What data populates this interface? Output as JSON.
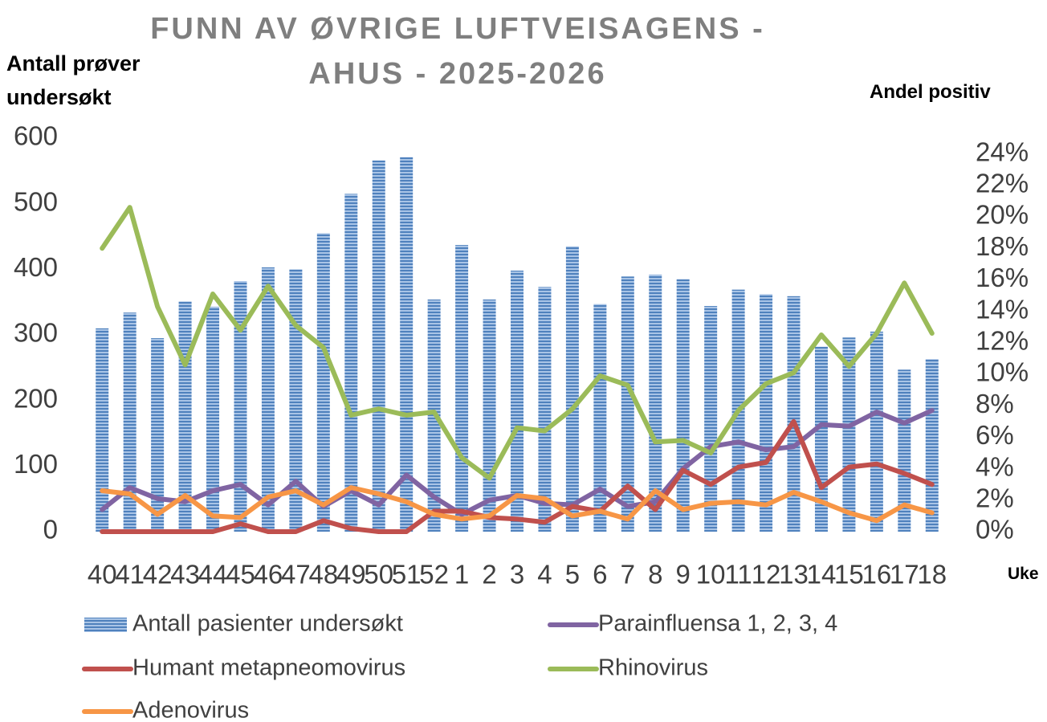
{
  "chart_data": {
    "type": "combo",
    "title": "FUNN AV ØVRIGE LUFTVEISAGENS - AHUS - 2025-2026",
    "y_label": "Antall prøver undersøkt",
    "y2_label": "Andel positiv",
    "x_label": "Uke",
    "categories": [
      "40",
      "41",
      "42",
      "43",
      "44",
      "45",
      "46",
      "47",
      "48",
      "49",
      "50",
      "51",
      "52",
      "1",
      "2",
      "3",
      "4",
      "5",
      "6",
      "7",
      "8",
      "9",
      "10",
      "11",
      "12",
      "13",
      "14",
      "15",
      "16",
      "17",
      "18"
    ],
    "ylim": [
      0,
      600
    ],
    "yticks": [
      0,
      100,
      200,
      300,
      400,
      500,
      600
    ],
    "y2lim": [
      0,
      25
    ],
    "y2ticks": [
      {
        "value": 0,
        "label": "0%"
      },
      {
        "value": 2,
        "label": "2%"
      },
      {
        "value": 4,
        "label": "4%"
      },
      {
        "value": 6,
        "label": "6%"
      },
      {
        "value": 8,
        "label": "8%"
      },
      {
        "value": 10,
        "label": "10%"
      },
      {
        "value": 12,
        "label": "12%"
      },
      {
        "value": 14,
        "label": "14%"
      },
      {
        "value": 16,
        "label": "16%"
      },
      {
        "value": 18,
        "label": "18%"
      },
      {
        "value": 20,
        "label": "20%"
      },
      {
        "value": 22,
        "label": "22%"
      },
      {
        "value": 24,
        "label": "24%"
      }
    ],
    "series": [
      {
        "name": "Antall pasienter undersøkt",
        "type": "bar",
        "color": "#4f81bd",
        "values": [
          310,
          334,
          295,
          351,
          343,
          382,
          403,
          400,
          455,
          515,
          566,
          571,
          354,
          437,
          354,
          398,
          373,
          435,
          347,
          389,
          392,
          385,
          344,
          369,
          362,
          359,
          282,
          296,
          305,
          247,
          263
        ]
      },
      {
        "name": "Parainfluensa 1, 2, 3, 4",
        "type": "line",
        "axis": "y2",
        "color": "#8064a2",
        "values": [
          1.4,
          2.8,
          2.1,
          1.9,
          2.6,
          3.0,
          1.7,
          3.2,
          1.6,
          2.6,
          1.7,
          3.6,
          2.2,
          1.1,
          2.0,
          2.3,
          1.8,
          1.7,
          2.7,
          1.6,
          1.9,
          4.0,
          5.4,
          5.7,
          5.2,
          5.4,
          6.8,
          6.7,
          7.6,
          6.9,
          7.7
        ]
      },
      {
        "name": "Humant metapneomovirus",
        "type": "line",
        "axis": "y2",
        "color": "#c0504d",
        "values": [
          0,
          0,
          0,
          0,
          0,
          0.5,
          0,
          0,
          0.7,
          0.2,
          0,
          0,
          1.3,
          1.3,
          0.9,
          0.8,
          0.6,
          1.6,
          1.3,
          2.9,
          1.4,
          3.9,
          3.0,
          4.1,
          4.4,
          7.0,
          2.8,
          4.1,
          4.3,
          3.7,
          3.0
        ]
      },
      {
        "name": "Rhinovirus",
        "type": "line",
        "axis": "y2",
        "color": "#9bbb59",
        "values": [
          18.0,
          20.6,
          14.3,
          10.6,
          15.1,
          12.8,
          15.6,
          13.1,
          11.7,
          7.4,
          7.8,
          7.4,
          7.6,
          4.7,
          3.4,
          6.6,
          6.4,
          7.8,
          9.9,
          9.3,
          5.7,
          5.8,
          5.0,
          7.7,
          9.4,
          10.1,
          12.5,
          10.5,
          12.6,
          15.8,
          12.6
        ]
      },
      {
        "name": "Adenovirus",
        "type": "line",
        "axis": "y2",
        "color": "#f79646",
        "values": [
          2.6,
          2.4,
          1.1,
          2.3,
          1.0,
          0.9,
          2.2,
          2.6,
          1.7,
          2.8,
          2.4,
          1.9,
          1.1,
          0.8,
          1.0,
          2.3,
          2.1,
          1.0,
          1.3,
          0.8,
          2.6,
          1.4,
          1.8,
          1.9,
          1.7,
          2.5,
          1.9,
          1.2,
          0.7,
          1.7,
          1.2
        ]
      }
    ]
  }
}
